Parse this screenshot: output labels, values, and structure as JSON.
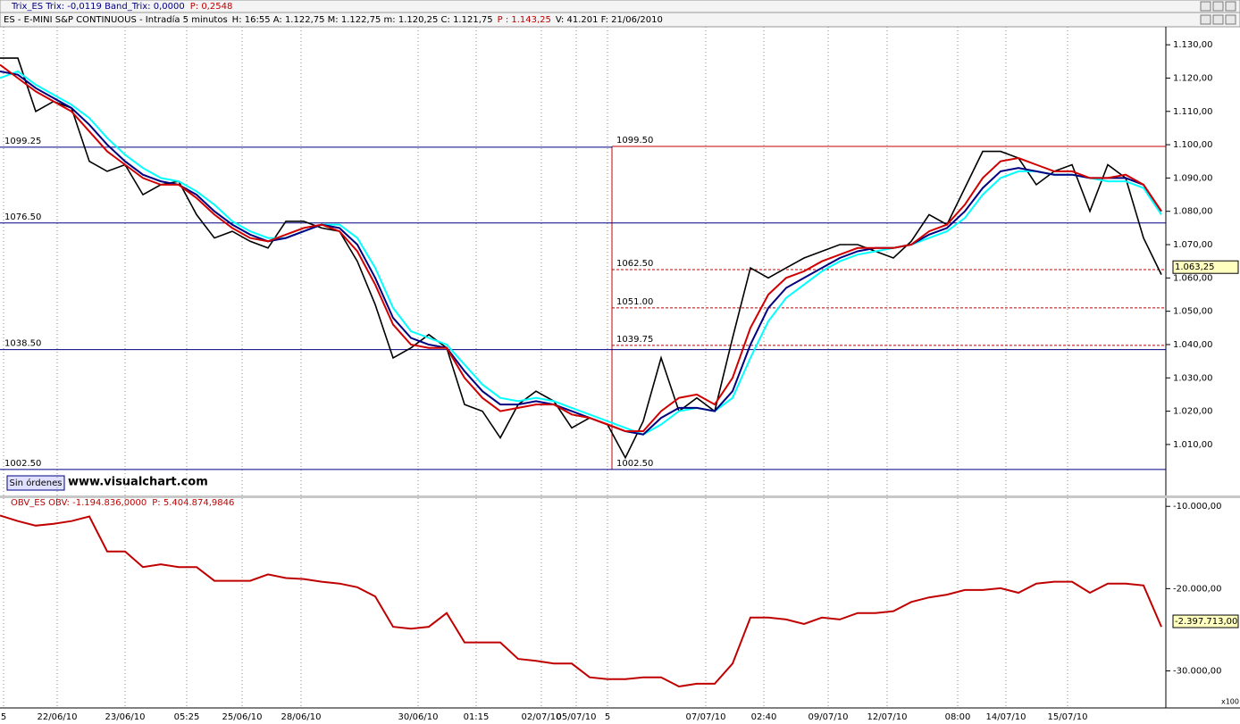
{
  "window": {
    "trix_header": "Trix_ES Trix: -0,0119 Band_Trix: 0,0000",
    "trix_p": "P: 0,2548",
    "button": "Sin órdenes",
    "watermark": "www.visualchart.com"
  },
  "chart_data": [
    {
      "type": "line",
      "title": "ES - E-MINI S&P CONTINUOUS - Intradía 5 minutos",
      "info": "H: 16:55 A: 1.122,75 M: 1.122,75 m: 1.120,25 C: 1.121,75",
      "info_p": "P : 1.143,25",
      "info_tail": "V: 41.201 F: 21/06/2010",
      "xlim": [
        0,
        65.25
      ],
      "xticks": [
        {
          "value": 0.2,
          "label": "5"
        },
        {
          "value": 3.2,
          "label": "22/06/10"
        },
        {
          "value": 7,
          "label": "23/06/10"
        },
        {
          "value": 10.45,
          "label": "05:25"
        },
        {
          "value": 13.55,
          "label": "25/06/10"
        },
        {
          "value": 16.85,
          "label": "28/06/10"
        },
        {
          "value": 23.4,
          "label": "30/06/10"
        },
        {
          "value": 26.65,
          "label": "01:15"
        },
        {
          "value": 30.3,
          "label": "02/07/10"
        },
        {
          "value": 32.25,
          "label": "05/07/10"
        },
        {
          "value": 34,
          "label": "5"
        },
        {
          "value": 39.5,
          "label": "07/07/10"
        },
        {
          "value": 42.75,
          "label": "02:40"
        },
        {
          "value": 46.35,
          "label": "09/07/10"
        },
        {
          "value": 49.65,
          "label": "12/07/10"
        },
        {
          "value": 53.6,
          "label": "08:00"
        },
        {
          "value": 56.3,
          "label": "14/07/10"
        },
        {
          "value": 59.75,
          "label": "15/07/10"
        }
      ],
      "ylim": [
        994.7,
        1135.4
      ],
      "yticks": [
        {
          "value": 1010,
          "label": "1.010,00"
        },
        {
          "value": 1020,
          "label": "1.020,00"
        },
        {
          "value": 1030,
          "label": "1.030,00"
        },
        {
          "value": 1040,
          "label": "1.040,00"
        },
        {
          "value": 1050,
          "label": "1.050,00"
        },
        {
          "value": 1060,
          "label": "1.060,00"
        },
        {
          "value": 1070,
          "label": "1.070,00"
        },
        {
          "value": 1080,
          "label": "1.080,00"
        },
        {
          "value": 1090,
          "label": "1.090,00"
        },
        {
          "value": 1100,
          "label": "1.100,00"
        },
        {
          "value": 1110,
          "label": "1.110,00"
        },
        {
          "value": 1120,
          "label": "1.120,00"
        },
        {
          "value": 1130,
          "label": "1.130,00"
        }
      ],
      "grid": true,
      "series": [
        {
          "color": "#000000",
          "values": [
            1126,
            1126,
            1110,
            1113,
            1111,
            1095,
            1092,
            1094,
            1085,
            1088,
            1089,
            1079,
            1072,
            1074,
            1071,
            1069,
            1077,
            1077,
            1075,
            1074,
            1065,
            1052,
            1036,
            1039,
            1043,
            1039,
            1022,
            1020,
            1012,
            1022,
            1026,
            1023,
            1015,
            1018,
            1016,
            1006,
            1017,
            1036,
            1020,
            1024,
            1020,
            1042,
            1063,
            1060,
            1063,
            1066,
            1068,
            1070,
            1070,
            1068,
            1066,
            1071,
            1079,
            1076,
            1087,
            1098,
            1098,
            1096,
            1088,
            1092,
            1094,
            1080,
            1094,
            1090,
            1072,
            1061
          ]
        },
        {
          "color": "#00ffff",
          "values": [
            1120,
            1122,
            1118,
            1115,
            1112,
            1108,
            1102,
            1097,
            1093,
            1090,
            1089,
            1086,
            1082,
            1077,
            1074,
            1072,
            1072,
            1074,
            1076,
            1076,
            1072,
            1063,
            1051,
            1044,
            1042,
            1040,
            1034,
            1028,
            1024,
            1023,
            1024,
            1023,
            1021,
            1019,
            1017,
            1015,
            1013,
            1016,
            1020,
            1021,
            1020,
            1024,
            1036,
            1047,
            1054,
            1058,
            1062,
            1065,
            1067,
            1068,
            1069,
            1070,
            1072,
            1074,
            1078,
            1085,
            1090,
            1092,
            1092,
            1091,
            1091,
            1090,
            1089,
            1089,
            1087,
            1079
          ]
        },
        {
          "color": "#000080",
          "values": [
            1122,
            1121,
            1117,
            1114,
            1111,
            1106,
            1100,
            1095,
            1091,
            1089,
            1088,
            1085,
            1080,
            1076,
            1073,
            1071,
            1072,
            1074,
            1076,
            1075,
            1070,
            1060,
            1048,
            1042,
            1040,
            1039,
            1032,
            1026,
            1022,
            1022,
            1023,
            1022,
            1020,
            1018,
            1016,
            1014,
            1013,
            1018,
            1021,
            1021,
            1020,
            1026,
            1040,
            1051,
            1057,
            1060,
            1063,
            1066,
            1068,
            1069,
            1069,
            1070,
            1073,
            1075,
            1080,
            1087,
            1092,
            1093,
            1092,
            1091,
            1091,
            1090,
            1090,
            1090,
            1088,
            1080
          ]
        },
        {
          "color": "#d00000",
          "values": [
            1124,
            1120,
            1116,
            1113,
            1110,
            1104,
            1098,
            1094,
            1090,
            1088,
            1088,
            1084,
            1079,
            1075,
            1072,
            1071,
            1073,
            1075,
            1076,
            1074,
            1068,
            1058,
            1046,
            1040,
            1039,
            1039,
            1030,
            1024,
            1020,
            1021,
            1022,
            1022,
            1019,
            1018,
            1016,
            1014,
            1014,
            1020,
            1024,
            1025,
            1022,
            1030,
            1045,
            1055,
            1060,
            1062,
            1065,
            1067,
            1069,
            1069,
            1069,
            1070,
            1074,
            1076,
            1082,
            1090,
            1095,
            1096,
            1094,
            1092,
            1092,
            1090,
            1090,
            1091,
            1088,
            1080
          ]
        }
      ],
      "levels": [
        {
          "value": 1099.25,
          "color": "#000080",
          "dashed": false,
          "x": [
            0,
            34.25
          ]
        },
        {
          "value": 1076.5,
          "label": "1076.50",
          "color": "#000080",
          "dashed": false,
          "x": [
            0,
            65.25
          ]
        },
        {
          "value": 1038.5,
          "label": "1038.50",
          "color": "#000080",
          "dashed": false,
          "x": [
            0,
            65.25
          ]
        },
        {
          "value": 1002.5,
          "label": "1002.50",
          "color": "#000080",
          "dashed": false,
          "x": [
            0,
            65.25
          ]
        },
        {
          "value": 1099.5,
          "label": "1099.50",
          "color": "#c00000",
          "dashed": false,
          "x": [
            34.25,
            65.25
          ]
        },
        {
          "value": 1062.5,
          "label": "1062.50",
          "color": "#c00000",
          "dashed": true,
          "x": [
            34.25,
            65.25
          ]
        },
        {
          "value": 1051,
          "label": "1051.00",
          "color": "#c00000",
          "dashed": true,
          "x": [
            34.25,
            65.25
          ]
        },
        {
          "value": 1039.75,
          "color": "#c00000",
          "dashed": true,
          "x": [
            34.25,
            65.25
          ]
        },
        {
          "value": 1002.5,
          "label": "1002.50",
          "color": "#c00000",
          "dashed": false,
          "x": [
            34.25,
            34.25
          ]
        }
      ],
      "last": {
        "value": 1063.25,
        "label": "1.063,25"
      }
    },
    {
      "type": "line",
      "title": "OBV_ES OBV: -1.194.836,0000",
      "info_p": "P: 5.404.874,9846",
      "multiplier": "x100",
      "ylim": [
        -3450000,
        -900000
      ],
      "yticks": [
        {
          "value": -1000000,
          "label": "-10.000,00"
        },
        {
          "value": -2000000,
          "label": "-20.000,00"
        },
        {
          "value": -3000000,
          "label": "-30.000,00"
        }
      ],
      "grid": true,
      "series": [
        {
          "color": "#c00000",
          "values": [
            -1111700,
            -1178800,
            -1234600,
            -1212300,
            -1178800,
            -1122900,
            -1547500,
            -1547500,
            -1737400,
            -1703900,
            -1737400,
            -1737400,
            -1905000,
            -1905000,
            -1905000,
            -1826800,
            -1871500,
            -1882700,
            -1916200,
            -1938500,
            -1983200,
            -2094900,
            -2463700,
            -2486000,
            -2463700,
            -2296100,
            -2653600,
            -2653600,
            -2653600,
            -2854700,
            -2877100,
            -2910600,
            -2910600,
            -3078200,
            -3100500,
            -3100500,
            -3078200,
            -3078200,
            -3189900,
            -3156400,
            -3156400,
            -2910600,
            -2352000,
            -2352000,
            -2374300,
            -2430200,
            -2352000,
            -2374300,
            -2296100,
            -2296100,
            -2273700,
            -2162000,
            -2106100,
            -2072600,
            -2016800,
            -2016800,
            -1994400,
            -2050300,
            -1938500,
            -1916200,
            -1916200,
            -2050300,
            -1938500,
            -1938500,
            -1960900,
            -2463700
          ]
        }
      ],
      "last": {
        "value": -2397713,
        "label": "-2.397.713,00"
      }
    }
  ]
}
